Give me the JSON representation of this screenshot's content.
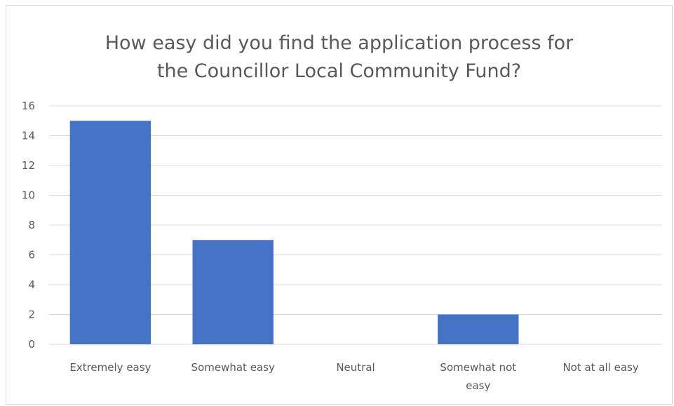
{
  "chart_data": {
    "type": "bar",
    "title": [
      "How easy did you find the application process for",
      "the Councillor Local Community Fund?"
    ],
    "categories": [
      "Extremely easy",
      "Somewhat easy",
      "Neutral",
      "Somewhat not easy",
      "Not at all easy"
    ],
    "category_lines": [
      [
        "Extremely easy"
      ],
      [
        "Somewhat easy"
      ],
      [
        "Neutral"
      ],
      [
        "Somewhat not",
        "easy"
      ],
      [
        "Not at all easy"
      ]
    ],
    "values": [
      15,
      7,
      0,
      2,
      0
    ],
    "ylim": [
      0,
      16
    ],
    "yticks": [
      0,
      2,
      4,
      6,
      8,
      10,
      12,
      14,
      16
    ],
    "grid": true,
    "legend": "none",
    "bar_color": "#4472c4",
    "grid_color": "#d9d9d9"
  }
}
